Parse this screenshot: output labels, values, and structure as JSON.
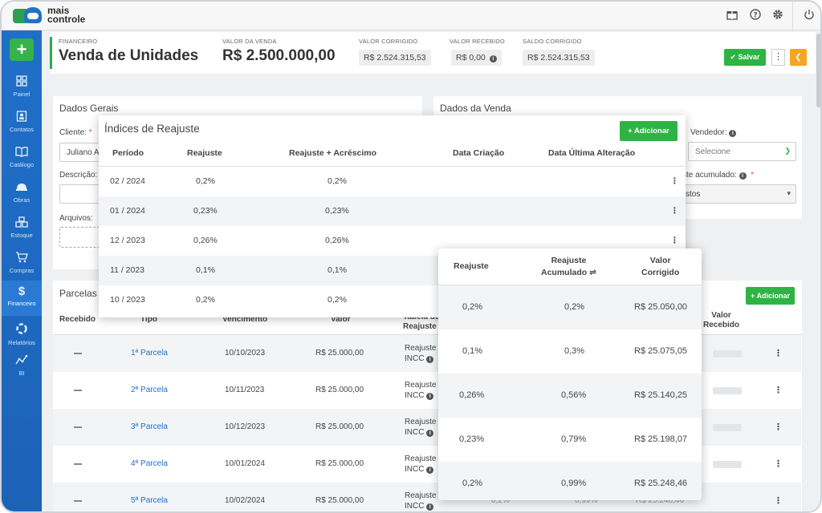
{
  "app": {
    "logo_line1": "mais",
    "logo_line2": "controle"
  },
  "topbar": {
    "icons": [
      "gift-icon",
      "help-icon",
      "gear-icon",
      "power-icon"
    ]
  },
  "sidebar": {
    "add_symbol": "+",
    "items": [
      {
        "label": "Painel",
        "icon": "grid-icon"
      },
      {
        "label": "Contatos",
        "icon": "contact-icon"
      },
      {
        "label": "Catálogo",
        "icon": "book-icon"
      },
      {
        "label": "Obras",
        "icon": "helmet-icon"
      },
      {
        "label": "Estoque",
        "icon": "boxes-icon"
      },
      {
        "label": "Compras",
        "icon": "cart-icon"
      },
      {
        "label": "Financeiro",
        "icon": "dollar-icon"
      },
      {
        "label": "Relatórios",
        "icon": "reports-icon"
      },
      {
        "label": "BI",
        "icon": "chart-icon"
      }
    ]
  },
  "header": {
    "section_caption": "FINANCEIRO",
    "title": "Venda de Unidades",
    "valor_venda_caption": "VALOR DA VENDA",
    "valor_venda": "R$ 2.500.000,00",
    "valor_corrigido_caption": "VALOR CORRIGIDO",
    "valor_corrigido": "R$ 2.524.315,53",
    "valor_recebido_caption": "VALOR RECEBIDO",
    "valor_recebido": "R$ 0,00",
    "saldo_corrigido_caption": "SALDO CORRIGIDO",
    "saldo_corrigido": "R$ 2.524.315,53",
    "save_label": "Salvar"
  },
  "dados_gerais": {
    "title": "Dados Gerais",
    "cliente_label": "Cliente:",
    "cliente_value": "Juliano A",
    "descricao_label": "Descrição:",
    "arquivos_label": "Arquivos:"
  },
  "dados_venda": {
    "title": "Dados da Venda",
    "vendedor_label": "Vendedor:",
    "vendedor_placeholder": "Selecione",
    "reajuste_label": "ste acumulado:",
    "reajuste_value": "stos"
  },
  "parcelas": {
    "title": "Parcelas",
    "add_label": "Adicionar",
    "headers": {
      "recebido": "Recebido",
      "tipo": "Tipo",
      "vencimento": "Vencimento",
      "valor": "Valor",
      "tabela_line1": "Tabela de",
      "tabela_line2": "Reajuste",
      "valor_recebido_line1": "Valor",
      "valor_recebido_line2": "Recebido"
    },
    "rows": [
      {
        "tipo": "1ª Parcela",
        "vencimento": "10/10/2023",
        "valor": "R$ 25.000,00",
        "reajuste_line1": "Reajuste",
        "reajuste_line2": "INCC"
      },
      {
        "tipo": "2ª Parcela",
        "vencimento": "10/11/2023",
        "valor": "R$ 25.000,00",
        "reajuste_line1": "Reajuste",
        "reajuste_line2": "INCC"
      },
      {
        "tipo": "3ª Parcela",
        "vencimento": "10/12/2023",
        "valor": "R$ 25.000,00",
        "reajuste_line1": "Reajuste",
        "reajuste_line2": "INCC"
      },
      {
        "tipo": "4ª Parcela",
        "vencimento": "10/01/2024",
        "valor": "R$ 25.000,00",
        "reajuste_line1": "Reajuste",
        "reajuste_line2": "INCC"
      },
      {
        "tipo": "5ª Parcela",
        "vencimento": "10/02/2024",
        "valor": "R$ 25.000,00",
        "reajuste_line1": "Reajuste",
        "reajuste_line2": "INCC",
        "peek_reajuste": "0,2%",
        "peek_acumulado": "0,99%",
        "peek_valor": "R$ 25.248,46"
      }
    ]
  },
  "indices": {
    "title": "Índices de Reajuste",
    "add_label": "Adicionar",
    "headers": {
      "periodo": "Período",
      "reajuste": "Reajuste",
      "reajuste_acrescimo": "Reajuste + Acréscimo",
      "data_criacao": "Data Criação",
      "data_alteracao": "Data Última Alteração"
    },
    "rows": [
      {
        "periodo": "02 / 2024",
        "reajuste": "0,2%",
        "reajuste_acrescimo": "0,2%"
      },
      {
        "periodo": "01 / 2024",
        "reajuste": "0,23%",
        "reajuste_acrescimo": "0,23%"
      },
      {
        "periodo": "12 / 2023",
        "reajuste": "0,26%",
        "reajuste_acrescimo": "0,26%"
      },
      {
        "periodo": "11 / 2023",
        "reajuste": "0,1%",
        "reajuste_acrescimo": "0,1%"
      },
      {
        "periodo": "10 / 2023",
        "reajuste": "0,2%",
        "reajuste_acrescimo": "0,2%"
      }
    ]
  },
  "reajuste_detail": {
    "headers": {
      "reajuste": "Reajuste",
      "acumulado_line1": "Reajuste",
      "acumulado_line2": "Acumulado",
      "valor_line1": "Valor",
      "valor_line2": "Corrigido"
    },
    "rows": [
      {
        "reajuste": "0,2%",
        "acumulado": "0,2%",
        "valor": "R$ 25.050,00"
      },
      {
        "reajuste": "0,1%",
        "acumulado": "0,3%",
        "valor": "R$ 25.075,05"
      },
      {
        "reajuste": "0,26%",
        "acumulado": "0,56%",
        "valor": "R$ 25.140,25"
      },
      {
        "reajuste": "0,23%",
        "acumulado": "0,79%",
        "valor": "R$ 25.198,07"
      },
      {
        "reajuste": "0,2%",
        "acumulado": "0,99%",
        "valor": "R$ 25.248,46"
      }
    ]
  }
}
